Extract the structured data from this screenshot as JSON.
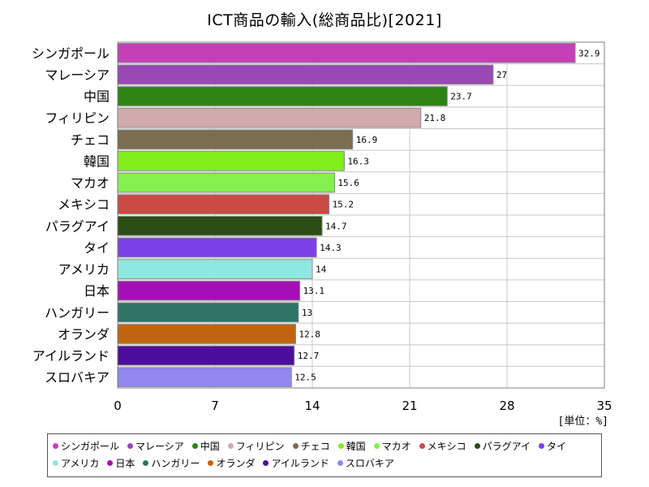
{
  "chart_data": {
    "type": "bar",
    "orientation": "horizontal",
    "title": "ICT商品の輸入(総商品比)[2021]",
    "unit_label": "[単位：%]",
    "xlim": [
      0,
      35
    ],
    "xticks": [
      "0",
      "7",
      "14",
      "21",
      "28",
      "35"
    ],
    "grid": true,
    "legend_position": "bottom",
    "categories": [
      "シンガポール",
      "マレーシア",
      "中国",
      "フィリピン",
      "チェコ",
      "韓国",
      "マカオ",
      "メキシコ",
      "パラグアイ",
      "タイ",
      "アメリカ",
      "日本",
      "ハンガリー",
      "オランダ",
      "アイルランド",
      "スロバキア"
    ],
    "values": [
      32.9,
      27,
      23.7,
      21.8,
      16.9,
      16.3,
      15.6,
      15.2,
      14.7,
      14.3,
      14,
      13.1,
      13,
      12.8,
      12.7,
      12.5
    ],
    "value_labels": [
      "32.9",
      "27",
      "23.7",
      "21.8",
      "16.9",
      "16.3",
      "15.6",
      "15.2",
      "14.7",
      "14.3",
      "14",
      "13.1",
      "13",
      "12.8",
      "12.7",
      "12.5"
    ],
    "colors": [
      "#c53fb7",
      "#9a48b4",
      "#2e8412",
      "#d2a9ac",
      "#7a6e4e",
      "#82ee1a",
      "#84f04e",
      "#cb4a43",
      "#2b4d14",
      "#7a40e6",
      "#8ee7e0",
      "#a60fb8",
      "#2f7466",
      "#c06410",
      "#4d0f9a",
      "#9088f0"
    ]
  }
}
